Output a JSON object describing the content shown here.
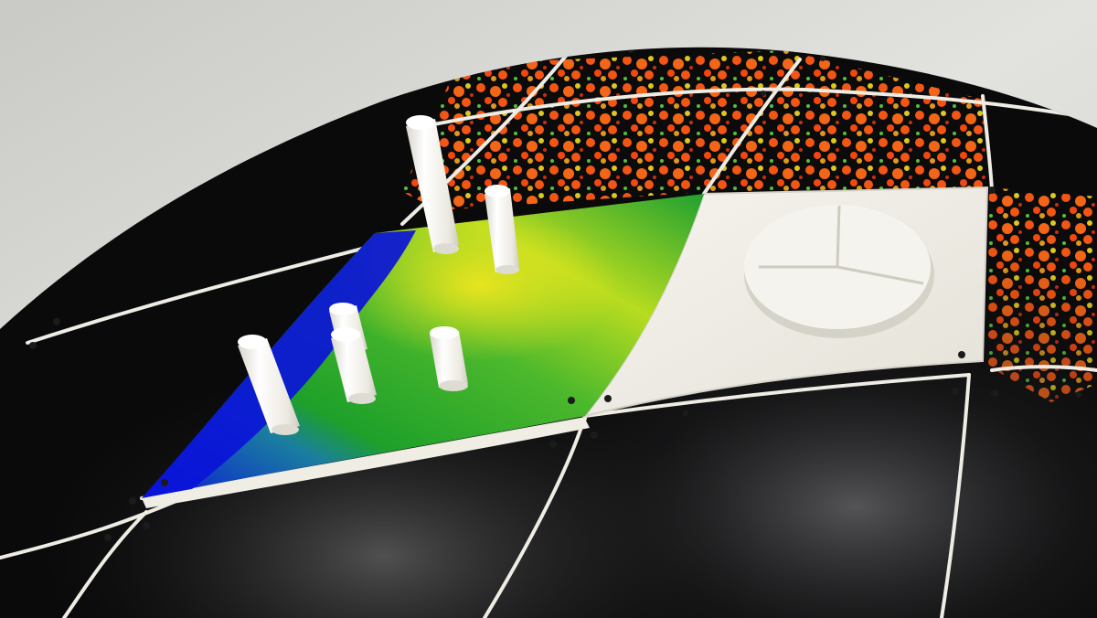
{
  "photo": {
    "subject": "3d-printed-terrain-tiles-on-black-dome",
    "colors": {
      "background": "#d8d8d4",
      "dome": "#0a0a0b",
      "seam": "#efece4",
      "printed_tile": "#f1efe8",
      "water": "#0a14d8",
      "lowland": "#1ea02a",
      "midland": "#9ed620",
      "highland": "#f0e81e",
      "heat_orange": "#ff5a14",
      "heat_yellow": "#e8d21e",
      "heat_green": "#5ac83c"
    },
    "objects": {
      "pillars": [
        "pillar",
        "pillar",
        "pillar",
        "pillar",
        "pillar",
        "pillar"
      ],
      "pie_disc_sectors": 3
    }
  }
}
